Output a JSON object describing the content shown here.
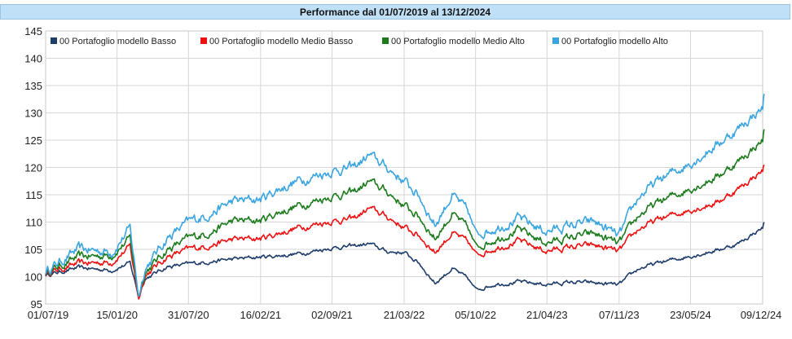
{
  "chart_data": {
    "type": "line",
    "title": "Performance dal 01/07/2019 al 13/12/2024",
    "xlabel": "",
    "ylabel": "",
    "ylim": [
      95,
      145
    ],
    "yticks": [
      "145",
      "140",
      "135",
      "130",
      "125",
      "120",
      "115",
      "110",
      "105",
      "100",
      "95"
    ],
    "xticks": [
      "01/07/19",
      "15/01/20",
      "31/07/20",
      "16/02/21",
      "02/09/21",
      "21/03/22",
      "05/10/22",
      "21/04/23",
      "07/11/23",
      "23/05/24",
      "09/12/24"
    ],
    "grid": true,
    "legend_position": "top-left",
    "x": [
      "01/07/19",
      "01/10/19",
      "01/01/20",
      "20/02/20",
      "15/03/20",
      "01/04/20",
      "01/06/20",
      "31/07/20",
      "01/10/20",
      "01/12/20",
      "16/02/21",
      "01/04/21",
      "01/06/21",
      "02/09/21",
      "01/11/21",
      "15/12/21",
      "01/02/22",
      "21/03/22",
      "01/05/22",
      "15/06/22",
      "01/08/22",
      "15/09/22",
      "05/10/22",
      "01/12/22",
      "01/02/23",
      "21/04/23",
      "01/07/23",
      "01/09/23",
      "07/11/23",
      "01/01/24",
      "01/03/24",
      "23/05/24",
      "01/08/24",
      "01/10/24",
      "09/12/24",
      "13/12/24"
    ],
    "series": [
      {
        "name": "00 Portafoglio modello Basso",
        "color": "#1f3d6b",
        "values": [
          100.3,
          101.6,
          101.2,
          102.5,
          96.5,
          99.6,
          101.8,
          102.3,
          102.8,
          103.2,
          103.6,
          103.8,
          104.2,
          105.3,
          105.6,
          106.0,
          104.6,
          104.4,
          102.5,
          98.8,
          101.5,
          99.5,
          97.6,
          98.7,
          99.0,
          98.6,
          99.0,
          98.8,
          98.5,
          101.5,
          102.6,
          103.8,
          104.8,
          106.0,
          109.0,
          110.0
        ]
      },
      {
        "name": "00 Portafoglio modello Medio Basso",
        "color": "#ee1111",
        "values": [
          100.6,
          102.4,
          102.7,
          105.5,
          96.0,
          100.2,
          103.6,
          105.0,
          105.8,
          106.8,
          107.0,
          107.8,
          109.0,
          110.2,
          110.6,
          112.5,
          111.0,
          109.0,
          107.5,
          104.5,
          108.0,
          106.2,
          104.0,
          105.3,
          106.5,
          104.7,
          105.5,
          105.7,
          104.6,
          108.8,
          110.6,
          112.3,
          113.5,
          116.0,
          119.5,
          120.5
        ]
      },
      {
        "name": "00 Portafoglio modello Medio Alto",
        "color": "#1c7b1c",
        "values": [
          100.8,
          103.6,
          104.0,
          107.0,
          96.5,
          100.8,
          104.9,
          107.0,
          108.2,
          110.2,
          110.3,
          111.6,
          113.0,
          114.8,
          115.4,
          117.4,
          115.6,
          113.0,
          111.0,
          107.0,
          111.5,
          108.7,
          105.4,
          107.0,
          108.5,
          106.2,
          107.3,
          107.8,
          106.0,
          111.3,
          113.8,
          116.2,
          118.2,
          121.0,
          125.0,
          127.0
        ]
      },
      {
        "name": "00 Portafoglio modello Alto",
        "color": "#3aa5e0",
        "values": [
          101.0,
          105.0,
          104.6,
          108.8,
          96.5,
          101.5,
          107.0,
          110.0,
          111.6,
          113.8,
          114.2,
          115.8,
          117.6,
          119.4,
          120.0,
          122.2,
          120.0,
          117.5,
          114.8,
          109.5,
          115.0,
          111.7,
          107.8,
          109.0,
          110.6,
          108.3,
          109.5,
          110.0,
          107.4,
          114.7,
          117.8,
          120.9,
          124.0,
          127.0,
          131.0,
          133.5
        ]
      }
    ]
  }
}
